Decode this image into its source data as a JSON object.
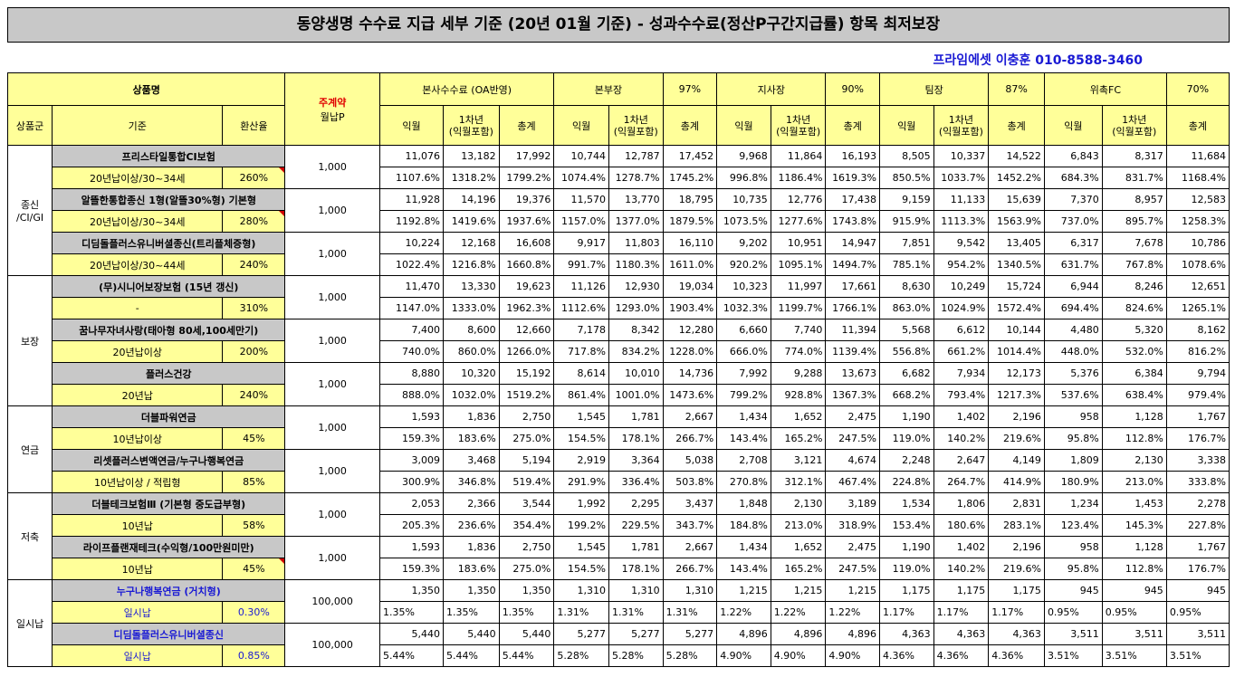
{
  "title": "동양생명 수수료 지급 세부 기준 (20년 01월 기준) - 성과수수료(정산P구간지급률) 항목 최저보장",
  "contact": "프라임에셋 이충훈 010-8588-3460",
  "header": {
    "product_name": "상품명",
    "payment_top": "주계약",
    "payment_bottom": "월납P",
    "group": "상품군",
    "basis": "기준",
    "conversion": "환산율",
    "sections": [
      {
        "label": "본사수수료 (OA반영)",
        "rate": ""
      },
      {
        "label": "본부장",
        "rate": "97%"
      },
      {
        "label": "지사장",
        "rate": "90%"
      },
      {
        "label": "팀장",
        "rate": "87%"
      },
      {
        "label": "위촉FC",
        "rate": "70%"
      }
    ],
    "sub": {
      "ik": "익월",
      "y1_top": "1차년",
      "y1_bottom": "(익월포함)",
      "total": "총계"
    }
  },
  "groups": [
    {
      "name": "종신\n/CI/GI",
      "rows": 3
    },
    {
      "name": "보장",
      "rows": 3
    },
    {
      "name": "연금",
      "rows": 2
    },
    {
      "name": "저축",
      "rows": 2
    },
    {
      "name": "일시납",
      "rows": 2
    }
  ],
  "products": [
    {
      "name": "프리스타일통합CI보험",
      "basis": "20년납이상/30~34세",
      "conv": "260%",
      "premium": "1,000",
      "blue": false,
      "mark": true,
      "amounts": [
        "11,076",
        "13,182",
        "17,992",
        "10,744",
        "12,787",
        "17,452",
        "9,968",
        "11,864",
        "16,193",
        "8,505",
        "10,337",
        "14,522",
        "6,843",
        "8,317",
        "11,684"
      ],
      "rates": [
        "1107.6%",
        "1318.2%",
        "1799.2%",
        "1074.4%",
        "1278.7%",
        "1745.2%",
        "996.8%",
        "1186.4%",
        "1619.3%",
        "850.5%",
        "1033.7%",
        "1452.2%",
        "684.3%",
        "831.7%",
        "1168.4%"
      ]
    },
    {
      "name": "알뜰한통합종신 1형(알뜰30%형) 기본형",
      "basis": "20년납이상/30~34세",
      "conv": "280%",
      "premium": "1,000",
      "blue": false,
      "mark": true,
      "amounts": [
        "11,928",
        "14,196",
        "19,376",
        "11,570",
        "13,770",
        "18,795",
        "10,735",
        "12,776",
        "17,438",
        "9,159",
        "11,133",
        "15,639",
        "7,370",
        "8,957",
        "12,583"
      ],
      "rates": [
        "1192.8%",
        "1419.6%",
        "1937.6%",
        "1157.0%",
        "1377.0%",
        "1879.5%",
        "1073.5%",
        "1277.6%",
        "1743.8%",
        "915.9%",
        "1113.3%",
        "1563.9%",
        "737.0%",
        "895.7%",
        "1258.3%"
      ]
    },
    {
      "name": "디딤돌플러스유니버셜종신(트리플체증형)",
      "basis": "20년납이상/30~44세",
      "conv": "240%",
      "premium": "1,000",
      "blue": false,
      "mark": false,
      "amounts": [
        "10,224",
        "12,168",
        "16,608",
        "9,917",
        "11,803",
        "16,110",
        "9,202",
        "10,951",
        "14,947",
        "7,851",
        "9,542",
        "13,405",
        "6,317",
        "7,678",
        "10,786"
      ],
      "rates": [
        "1022.4%",
        "1216.8%",
        "1660.8%",
        "991.7%",
        "1180.3%",
        "1611.0%",
        "920.2%",
        "1095.1%",
        "1494.7%",
        "785.1%",
        "954.2%",
        "1340.5%",
        "631.7%",
        "767.8%",
        "1078.6%"
      ]
    },
    {
      "name": "(무)시니어보장보험 (15년 갱신)",
      "basis": "-",
      "conv": "310%",
      "premium": "1,000",
      "blue": false,
      "mark": false,
      "amounts": [
        "11,470",
        "13,330",
        "19,623",
        "11,126",
        "12,930",
        "19,034",
        "10,323",
        "11,997",
        "17,661",
        "8,630",
        "10,249",
        "15,724",
        "6,944",
        "8,246",
        "12,651"
      ],
      "rates": [
        "1147.0%",
        "1333.0%",
        "1962.3%",
        "1112.6%",
        "1293.0%",
        "1903.4%",
        "1032.3%",
        "1199.7%",
        "1766.1%",
        "863.0%",
        "1024.9%",
        "1572.4%",
        "694.4%",
        "824.6%",
        "1265.1%"
      ]
    },
    {
      "name": "꿈나무자녀사랑(태아형 80세,100세만기)",
      "basis": "20년납이상",
      "conv": "200%",
      "premium": "1,000",
      "blue": false,
      "mark": false,
      "amounts": [
        "7,400",
        "8,600",
        "12,660",
        "7,178",
        "8,342",
        "12,280",
        "6,660",
        "7,740",
        "11,394",
        "5,568",
        "6,612",
        "10,144",
        "4,480",
        "5,320",
        "8,162"
      ],
      "rates": [
        "740.0%",
        "860.0%",
        "1266.0%",
        "717.8%",
        "834.2%",
        "1228.0%",
        "666.0%",
        "774.0%",
        "1139.4%",
        "556.8%",
        "661.2%",
        "1014.4%",
        "448.0%",
        "532.0%",
        "816.2%"
      ]
    },
    {
      "name": "플러스건강",
      "basis": "20년납",
      "conv": "240%",
      "premium": "1,000",
      "blue": false,
      "mark": false,
      "amounts": [
        "8,880",
        "10,320",
        "15,192",
        "8,614",
        "10,010",
        "14,736",
        "7,992",
        "9,288",
        "13,673",
        "6,682",
        "7,934",
        "12,173",
        "5,376",
        "6,384",
        "9,794"
      ],
      "rates": [
        "888.0%",
        "1032.0%",
        "1519.2%",
        "861.4%",
        "1001.0%",
        "1473.6%",
        "799.2%",
        "928.8%",
        "1367.3%",
        "668.2%",
        "793.4%",
        "1217.3%",
        "537.6%",
        "638.4%",
        "979.4%"
      ]
    },
    {
      "name": "더블파워연금",
      "basis": "10년납이상",
      "conv": "45%",
      "premium": "1,000",
      "blue": false,
      "mark": false,
      "amounts": [
        "1,593",
        "1,836",
        "2,750",
        "1,545",
        "1,781",
        "2,667",
        "1,434",
        "1,652",
        "2,475",
        "1,190",
        "1,402",
        "2,196",
        "958",
        "1,128",
        "1,767"
      ],
      "rates": [
        "159.3%",
        "183.6%",
        "275.0%",
        "154.5%",
        "178.1%",
        "266.7%",
        "143.4%",
        "165.2%",
        "247.5%",
        "119.0%",
        "140.2%",
        "219.6%",
        "95.8%",
        "112.8%",
        "176.7%"
      ]
    },
    {
      "name": "리셋플러스변액연금/누구나행복연금",
      "basis": "10년납이상 / 적립형",
      "conv": "85%",
      "premium": "1,000",
      "blue": false,
      "mark": false,
      "amounts": [
        "3,009",
        "3,468",
        "5,194",
        "2,919",
        "3,364",
        "5,038",
        "2,708",
        "3,121",
        "4,674",
        "2,248",
        "2,647",
        "4,149",
        "1,809",
        "2,130",
        "3,338"
      ],
      "rates": [
        "300.9%",
        "346.8%",
        "519.4%",
        "291.9%",
        "336.4%",
        "503.8%",
        "270.8%",
        "312.1%",
        "467.4%",
        "224.8%",
        "264.7%",
        "414.9%",
        "180.9%",
        "213.0%",
        "333.8%"
      ]
    },
    {
      "name": "더블테크보험Ⅲ (기본형 중도급부형)",
      "basis": "10년납",
      "conv": "58%",
      "premium": "1,000",
      "blue": false,
      "mark": false,
      "amounts": [
        "2,053",
        "2,366",
        "3,544",
        "1,992",
        "2,295",
        "3,437",
        "1,848",
        "2,130",
        "3,189",
        "1,534",
        "1,806",
        "2,831",
        "1,234",
        "1,453",
        "2,278"
      ],
      "rates": [
        "205.3%",
        "236.6%",
        "354.4%",
        "199.2%",
        "229.5%",
        "343.7%",
        "184.8%",
        "213.0%",
        "318.9%",
        "153.4%",
        "180.6%",
        "283.1%",
        "123.4%",
        "145.3%",
        "227.8%"
      ]
    },
    {
      "name": "라이프플랜재테크(수익형/100만원미만)",
      "basis": "10년납",
      "conv": "45%",
      "premium": "1,000",
      "blue": false,
      "mark": true,
      "amounts": [
        "1,593",
        "1,836",
        "2,750",
        "1,545",
        "1,781",
        "2,667",
        "1,434",
        "1,652",
        "2,475",
        "1,190",
        "1,402",
        "2,196",
        "958",
        "1,128",
        "1,767"
      ],
      "rates": [
        "159.3%",
        "183.6%",
        "275.0%",
        "154.5%",
        "178.1%",
        "266.7%",
        "143.4%",
        "165.2%",
        "247.5%",
        "119.0%",
        "140.2%",
        "219.6%",
        "95.8%",
        "112.8%",
        "176.7%"
      ]
    },
    {
      "name": "누구나행복연금 (거치형)",
      "basis": "일시납",
      "conv": "0.30%",
      "premium": "100,000",
      "blue": true,
      "mark": false,
      "amounts": [
        "1,350",
        "1,350",
        "1,350",
        "1,310",
        "1,310",
        "1,310",
        "1,215",
        "1,215",
        "1,215",
        "1,175",
        "1,175",
        "1,175",
        "945",
        "945",
        "945"
      ],
      "rates": [
        "1.35%",
        "1.35%",
        "1.35%",
        "1.31%",
        "1.31%",
        "1.31%",
        "1.22%",
        "1.22%",
        "1.22%",
        "1.17%",
        "1.17%",
        "1.17%",
        "0.95%",
        "0.95%",
        "0.95%"
      ]
    },
    {
      "name": "디딤돌플러스유니버셜종신",
      "basis": "일시납",
      "conv": "0.85%",
      "premium": "100,000",
      "blue": true,
      "mark": false,
      "amounts": [
        "5,440",
        "5,440",
        "5,440",
        "5,277",
        "5,277",
        "5,277",
        "4,896",
        "4,896",
        "4,896",
        "4,363",
        "4,363",
        "4,363",
        "3,511",
        "3,511",
        "3,511"
      ],
      "rates": [
        "5.44%",
        "5.44%",
        "5.44%",
        "5.28%",
        "5.28%",
        "5.28%",
        "4.90%",
        "4.90%",
        "4.90%",
        "4.36%",
        "4.36%",
        "4.36%",
        "3.51%",
        "3.51%",
        "3.51%"
      ]
    }
  ]
}
